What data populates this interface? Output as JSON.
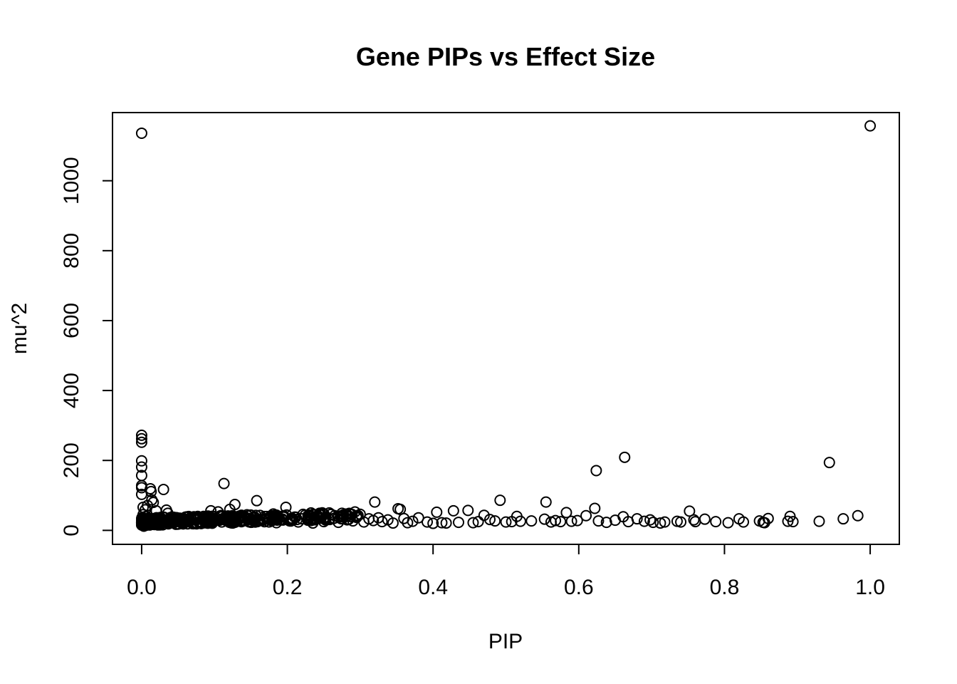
{
  "chart_data": {
    "type": "scatter",
    "title": "Gene PIPs vs Effect Size",
    "xlabel": "PIP",
    "ylabel": "mu^2",
    "xlim": [
      -0.04,
      1.04
    ],
    "ylim": [
      -40,
      1195
    ],
    "xticks": [
      0.0,
      0.2,
      0.4,
      0.6,
      0.8,
      1.0
    ],
    "xtick_labels": [
      "0.0",
      "0.2",
      "0.4",
      "0.6",
      "0.8",
      "1.0"
    ],
    "yticks": [
      0,
      200,
      400,
      600,
      800,
      1000
    ],
    "ytick_labels": [
      "0",
      "200",
      "400",
      "600",
      "800",
      "1000"
    ],
    "grid": false,
    "marker": "open-circle",
    "points": [
      [
        0.0,
        1136
      ],
      [
        1.0,
        1157
      ],
      [
        0.0,
        272
      ],
      [
        0.0,
        262
      ],
      [
        0.0,
        252
      ],
      [
        0.0,
        199
      ],
      [
        0.0,
        181
      ],
      [
        0.0,
        157
      ],
      [
        0.0,
        128
      ],
      [
        0.0,
        122
      ],
      [
        0.0,
        103
      ],
      [
        0.012,
        119
      ],
      [
        0.013,
        111
      ],
      [
        0.03,
        117
      ],
      [
        0.014,
        87
      ],
      [
        0.016,
        80
      ],
      [
        0.002,
        66
      ],
      [
        0.005,
        59
      ],
      [
        0.008,
        71
      ],
      [
        0.02,
        56
      ],
      [
        0.034,
        58
      ],
      [
        0.036,
        49
      ],
      [
        0.002,
        45
      ],
      [
        0.006,
        40
      ],
      [
        0.01,
        35
      ],
      [
        0.015,
        30
      ],
      [
        0.018,
        25
      ],
      [
        0.022,
        20
      ],
      [
        0.025,
        16
      ],
      [
        0.003,
        12
      ],
      [
        0.028,
        28
      ],
      [
        0.031,
        22
      ],
      [
        0.04,
        33
      ],
      [
        0.045,
        24
      ],
      [
        0.05,
        30
      ],
      [
        0.055,
        21
      ],
      [
        0.06,
        38
      ],
      [
        0.065,
        27
      ],
      [
        0.07,
        19
      ],
      [
        0.075,
        33
      ],
      [
        0.08,
        25
      ],
      [
        0.085,
        40
      ],
      [
        0.09,
        22
      ],
      [
        0.095,
        56
      ],
      [
        0.1,
        30
      ],
      [
        0.105,
        53
      ],
      [
        0.11,
        24
      ],
      [
        0.113,
        134
      ],
      [
        0.118,
        33
      ],
      [
        0.121,
        60
      ],
      [
        0.125,
        21
      ],
      [
        0.128,
        74
      ],
      [
        0.132,
        36
      ],
      [
        0.138,
        26
      ],
      [
        0.145,
        31
      ],
      [
        0.15,
        23
      ],
      [
        0.155,
        37
      ],
      [
        0.158,
        85
      ],
      [
        0.162,
        28
      ],
      [
        0.168,
        32
      ],
      [
        0.175,
        24
      ],
      [
        0.18,
        35
      ],
      [
        0.185,
        22
      ],
      [
        0.19,
        30
      ],
      [
        0.195,
        42
      ],
      [
        0.198,
        66
      ],
      [
        0.203,
        27
      ],
      [
        0.21,
        38
      ],
      [
        0.215,
        24
      ],
      [
        0.22,
        33
      ],
      [
        0.228,
        29
      ],
      [
        0.235,
        21
      ],
      [
        0.242,
        36
      ],
      [
        0.25,
        25
      ],
      [
        0.258,
        31
      ],
      [
        0.265,
        42
      ],
      [
        0.27,
        23
      ],
      [
        0.275,
        49
      ],
      [
        0.282,
        30
      ],
      [
        0.29,
        27
      ],
      [
        0.295,
        37
      ],
      [
        0.3,
        46
      ],
      [
        0.305,
        24
      ],
      [
        0.312,
        33
      ],
      [
        0.318,
        28
      ],
      [
        0.32,
        81
      ],
      [
        0.325,
        36
      ],
      [
        0.33,
        25
      ],
      [
        0.338,
        30
      ],
      [
        0.345,
        21
      ],
      [
        0.352,
        62
      ],
      [
        0.355,
        60
      ],
      [
        0.36,
        34
      ],
      [
        0.365,
        22
      ],
      [
        0.372,
        26
      ],
      [
        0.38,
        36
      ],
      [
        0.392,
        24
      ],
      [
        0.4,
        20
      ],
      [
        0.405,
        52
      ],
      [
        0.412,
        22
      ],
      [
        0.418,
        21
      ],
      [
        0.428,
        56
      ],
      [
        0.435,
        23
      ],
      [
        0.448,
        57
      ],
      [
        0.455,
        22
      ],
      [
        0.462,
        25
      ],
      [
        0.47,
        43
      ],
      [
        0.478,
        31
      ],
      [
        0.485,
        27
      ],
      [
        0.492,
        86
      ],
      [
        0.5,
        24
      ],
      [
        0.508,
        25
      ],
      [
        0.515,
        40
      ],
      [
        0.52,
        26
      ],
      [
        0.535,
        27
      ],
      [
        0.553,
        32
      ],
      [
        0.555,
        81
      ],
      [
        0.562,
        24
      ],
      [
        0.568,
        28
      ],
      [
        0.575,
        25
      ],
      [
        0.583,
        51
      ],
      [
        0.59,
        26
      ],
      [
        0.598,
        28
      ],
      [
        0.61,
        42
      ],
      [
        0.622,
        63
      ],
      [
        0.624,
        171
      ],
      [
        0.627,
        27
      ],
      [
        0.638,
        23
      ],
      [
        0.65,
        29
      ],
      [
        0.661,
        39
      ],
      [
        0.663,
        209
      ],
      [
        0.668,
        25
      ],
      [
        0.68,
        33
      ],
      [
        0.69,
        26
      ],
      [
        0.698,
        30
      ],
      [
        0.702,
        23
      ],
      [
        0.712,
        21
      ],
      [
        0.718,
        24
      ],
      [
        0.735,
        26
      ],
      [
        0.74,
        24
      ],
      [
        0.752,
        55
      ],
      [
        0.758,
        30
      ],
      [
        0.76,
        25
      ],
      [
        0.773,
        32
      ],
      [
        0.788,
        25
      ],
      [
        0.805,
        22
      ],
      [
        0.82,
        33
      ],
      [
        0.826,
        24
      ],
      [
        0.848,
        27
      ],
      [
        0.853,
        23
      ],
      [
        0.855,
        22
      ],
      [
        0.86,
        34
      ],
      [
        0.887,
        26
      ],
      [
        0.89,
        40
      ],
      [
        0.894,
        25
      ],
      [
        0.93,
        26
      ],
      [
        0.944,
        194
      ],
      [
        0.963,
        33
      ],
      [
        0.983,
        42
      ]
    ]
  }
}
